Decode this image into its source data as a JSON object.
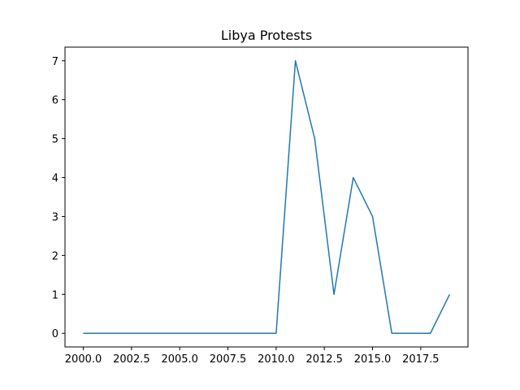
{
  "chart_data": {
    "type": "line",
    "title": "Libya Protests",
    "xlabel": "",
    "ylabel": "",
    "x": [
      2000,
      2001,
      2002,
      2003,
      2004,
      2005,
      2006,
      2007,
      2008,
      2009,
      2010,
      2011,
      2012,
      2013,
      2014,
      2015,
      2016,
      2017,
      2018,
      2019
    ],
    "series": [
      {
        "values": [
          0,
          0,
          0,
          0,
          0,
          0,
          0,
          0,
          0,
          0,
          0,
          7,
          5,
          1,
          4,
          3,
          0,
          0,
          0,
          1
        ],
        "color": "#1f77b4"
      }
    ],
    "xlim": [
      1999.05,
      2019.95
    ],
    "ylim": [
      -0.35,
      7.35
    ],
    "x_ticks": [
      {
        "value": 2000,
        "label": "2000.0"
      },
      {
        "value": 2002.5,
        "label": "2002.5"
      },
      {
        "value": 2005,
        "label": "2005.0"
      },
      {
        "value": 2007.5,
        "label": "2007.5"
      },
      {
        "value": 2010,
        "label": "2010.0"
      },
      {
        "value": 2012.5,
        "label": "2012.5"
      },
      {
        "value": 2015,
        "label": "2015.0"
      },
      {
        "value": 2017.5,
        "label": "2017.5"
      }
    ],
    "y_ticks": [
      {
        "value": 0,
        "label": "0"
      },
      {
        "value": 1,
        "label": "1"
      },
      {
        "value": 2,
        "label": "2"
      },
      {
        "value": 3,
        "label": "3"
      },
      {
        "value": 4,
        "label": "4"
      },
      {
        "value": 5,
        "label": "5"
      },
      {
        "value": 6,
        "label": "6"
      },
      {
        "value": 7,
        "label": "7"
      }
    ],
    "grid": false,
    "legend": false
  }
}
